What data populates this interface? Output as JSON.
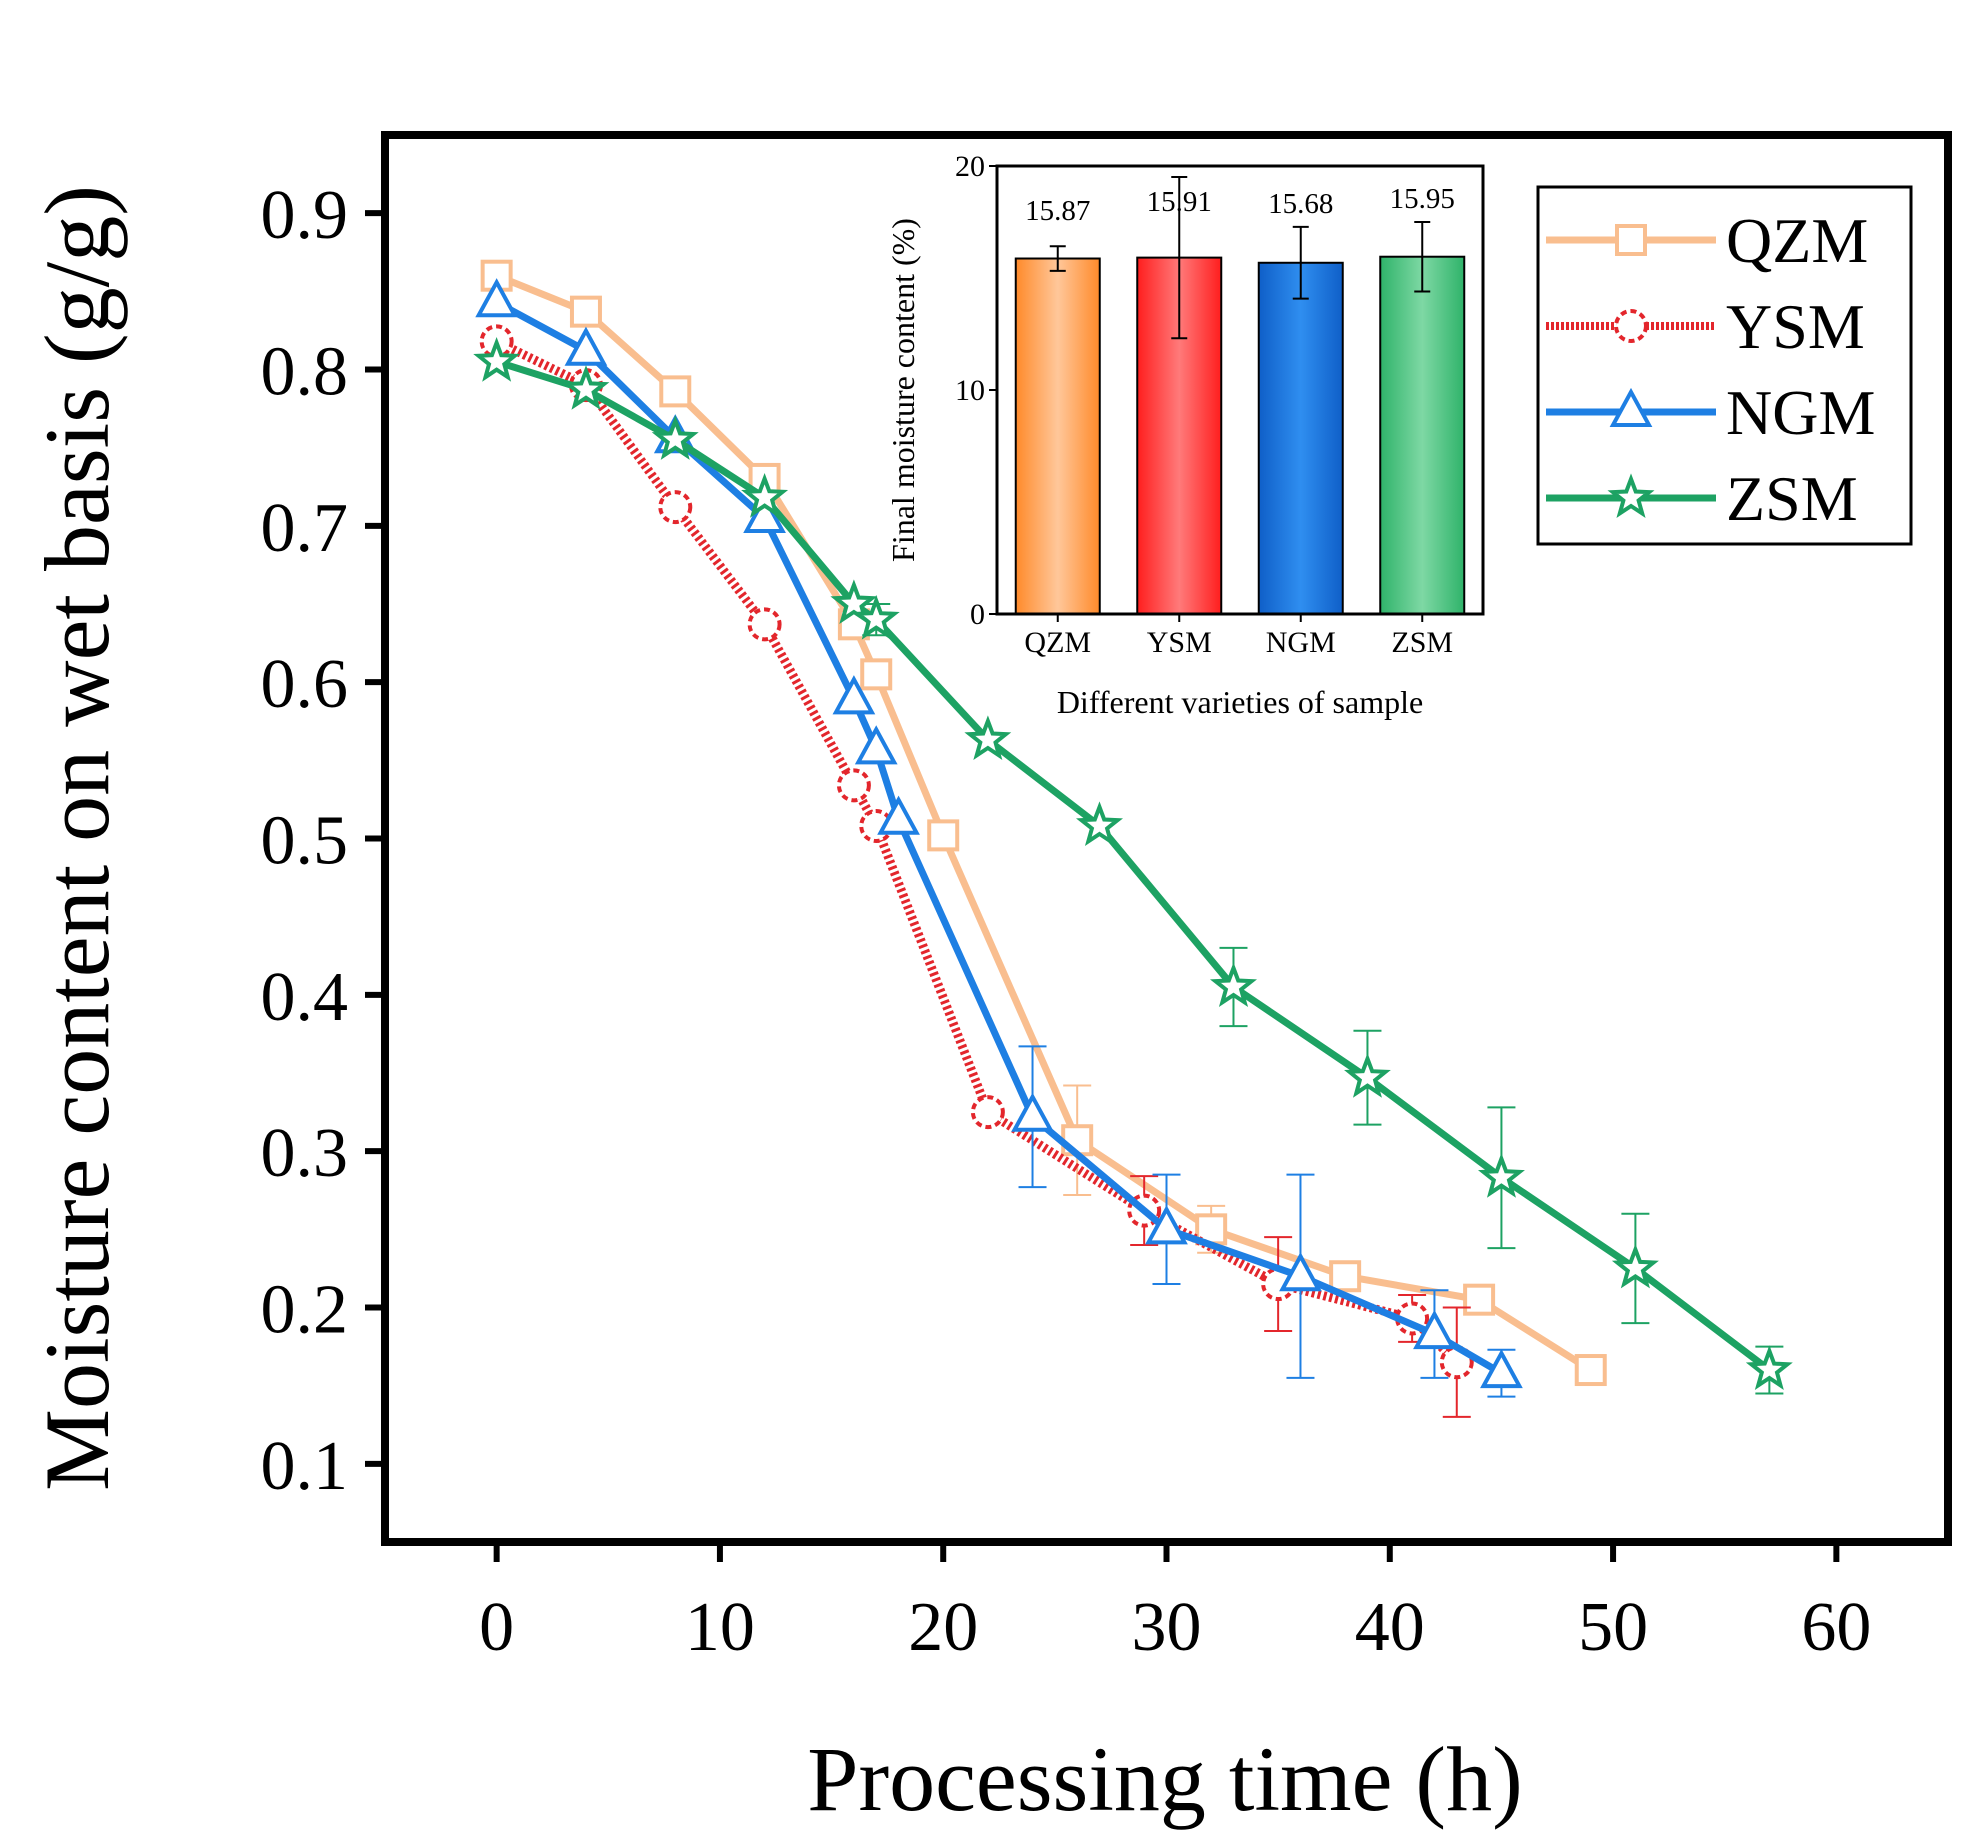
{
  "chart_data": {
    "type": "line",
    "xlabel": "Processing time (h)",
    "ylabel": "Moisture content on wet basis (g/g)",
    "xlim": [
      -5,
      65
    ],
    "ylim": [
      0.05,
      0.95
    ],
    "xticks": [
      "0",
      "10",
      "20",
      "30",
      "40",
      "50",
      "60"
    ],
    "yticks": [
      "0.1",
      "0.2",
      "0.3",
      "0.4",
      "0.5",
      "0.6",
      "0.7",
      "0.8",
      "0.9"
    ],
    "legend_position": "top-right",
    "series": [
      {
        "name": "QZM",
        "color": "#F9BE8F",
        "marker": "square",
        "line": "solid",
        "x": [
          0,
          4,
          8,
          12,
          16,
          17,
          20,
          26,
          32,
          38,
          44,
          49
        ],
        "y": [
          0.86,
          0.837,
          0.786,
          0.73,
          0.637,
          0.605,
          0.502,
          0.307,
          0.25,
          0.22,
          0.205,
          0.16
        ],
        "err": [
          0,
          0,
          0,
          0,
          0,
          0,
          0,
          0.035,
          0.015,
          0,
          0.007,
          0
        ]
      },
      {
        "name": "YSM",
        "color": "#E3262C",
        "marker": "circle",
        "line": "dashed",
        "x": [
          0,
          4,
          8,
          12,
          16,
          17,
          22,
          29,
          35,
          41,
          43
        ],
        "y": [
          0.818,
          0.79,
          0.712,
          0.637,
          0.534,
          0.508,
          0.325,
          0.262,
          0.215,
          0.193,
          0.165
        ],
        "err": [
          0,
          0,
          0,
          0,
          0,
          0,
          0,
          0.022,
          0.03,
          0.015,
          0.035
        ]
      },
      {
        "name": "NGM",
        "color": "#1E7FE3",
        "marker": "triangle",
        "line": "solid",
        "x": [
          0,
          4,
          8,
          12,
          16,
          17,
          18,
          24,
          30,
          36,
          42,
          45
        ],
        "y": [
          0.843,
          0.812,
          0.756,
          0.705,
          0.589,
          0.557,
          0.512,
          0.322,
          0.25,
          0.22,
          0.183,
          0.158
        ],
        "err": [
          0,
          0,
          0,
          0,
          0,
          0,
          0,
          0.045,
          0.035,
          0.065,
          0.028,
          0.015
        ]
      },
      {
        "name": "ZSM",
        "color": "#1DA263",
        "marker": "star",
        "line": "solid",
        "x": [
          0,
          4,
          8,
          12,
          16,
          17,
          22,
          27,
          33,
          39,
          45,
          51,
          57
        ],
        "y": [
          0.805,
          0.787,
          0.755,
          0.718,
          0.65,
          0.64,
          0.563,
          0.508,
          0.405,
          0.347,
          0.283,
          0.225,
          0.16
        ],
        "err": [
          0,
          0,
          0,
          0,
          0,
          0.01,
          0,
          0,
          0.025,
          0.03,
          0.045,
          0.035,
          0.015
        ]
      }
    ],
    "inset": {
      "type": "bar",
      "xlabel": "Different varieties of sample",
      "ylabel": "Final moisture content (%)",
      "ylim": [
        0,
        20
      ],
      "yticks": [
        "0",
        "10",
        "20"
      ],
      "categories": [
        "QZM",
        "YSM",
        "NGM",
        "ZSM"
      ],
      "values": [
        15.87,
        15.91,
        15.68,
        15.95
      ],
      "value_labels": [
        "15.87",
        "15.91",
        "15.68",
        "15.95"
      ],
      "err": [
        0.55,
        3.6,
        1.6,
        1.55
      ],
      "colors": [
        "#FF9F55",
        "#FF3B3B",
        "#1F7CE0",
        "#3FBF7A"
      ]
    }
  }
}
